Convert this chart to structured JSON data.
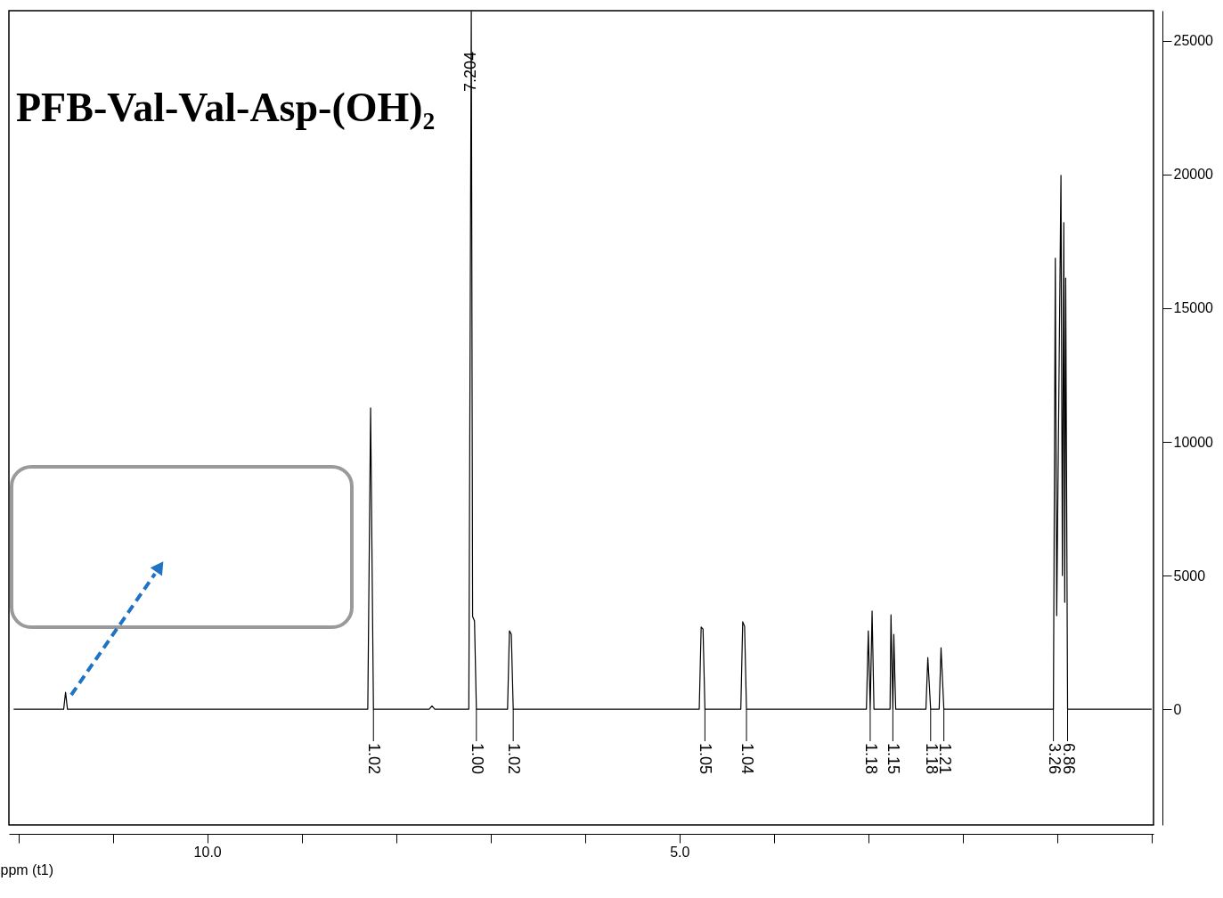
{
  "chart_data": {
    "type": "line",
    "title": "PFB-Val-Val-Asp-(OH)₂",
    "xlabel": "ppm (t1)",
    "x": [
      12.05,
      11.52,
      11.5,
      11.48,
      8.3,
      8.27,
      8.24,
      7.65,
      7.62,
      7.59,
      7.23,
      7.204,
      7.19,
      7.17,
      7.15,
      6.82,
      6.8,
      6.78,
      6.76,
      4.79,
      4.77,
      4.75,
      4.73,
      4.35,
      4.33,
      4.31,
      4.29,
      3.02,
      3.0,
      2.98,
      2.96,
      2.94,
      2.77,
      2.76,
      2.74,
      2.73,
      2.71,
      2.39,
      2.37,
      2.34,
      2.25,
      2.23,
      2.2,
      1.04,
      1.02,
      1.005,
      0.96,
      0.945,
      0.93,
      0.92,
      0.91,
      0.89,
      0.0
    ],
    "series": [
      {
        "color": "#000000",
        "values": [
          0,
          0,
          630,
          0,
          0,
          11270,
          0,
          0,
          120,
          0,
          0,
          26100,
          3470,
          3300,
          0,
          0,
          2930,
          2800,
          0,
          0,
          3070,
          3000,
          0,
          0,
          3270,
          3100,
          0,
          0,
          2930,
          0,
          3670,
          0,
          0,
          3530,
          0,
          2800,
          0,
          0,
          1930,
          0,
          0,
          2300,
          0,
          0,
          16870,
          3500,
          19970,
          5000,
          18200,
          4000,
          16130,
          0,
          0
        ]
      }
    ],
    "xlim": [
      12.1,
      -0.02
    ],
    "xticks": [
      {
        "value": 12,
        "label": null
      },
      {
        "value": 11,
        "label": null
      },
      {
        "value": 10,
        "label": "10.0"
      },
      {
        "value": 9,
        "label": null
      },
      {
        "value": 8,
        "label": null
      },
      {
        "value": 7,
        "label": null
      },
      {
        "value": 6,
        "label": null
      },
      {
        "value": 5,
        "label": "5.0"
      },
      {
        "value": 4,
        "label": null
      },
      {
        "value": 3,
        "label": null
      },
      {
        "value": 2,
        "label": null
      },
      {
        "value": 1,
        "label": null
      },
      {
        "value": 0,
        "label": null
      }
    ],
    "ylim": [
      -4330,
      26130
    ],
    "yticks": [
      0,
      5000,
      10000,
      15000,
      20000,
      25000
    ],
    "grid": false,
    "marker": "none",
    "line_style": "solid",
    "annotations": [
      {
        "text": "7.204",
        "x": 7.204,
        "y": 26100
      },
      {
        "text": "1.02",
        "x": 8.24,
        "y": 0
      },
      {
        "text": "1.00",
        "x": 7.15,
        "y": 0
      },
      {
        "text": "1.02",
        "x": 6.76,
        "y": 0
      },
      {
        "text": "1.05",
        "x": 4.73,
        "y": 0
      },
      {
        "text": "1.04",
        "x": 4.29,
        "y": 0
      },
      {
        "text": "1.18",
        "x": 2.98,
        "y": 0
      },
      {
        "text": "1.15",
        "x": 2.74,
        "y": 0
      },
      {
        "text": "1.18",
        "x": 2.34,
        "y": 0
      },
      {
        "text": "1.21",
        "x": 2.2,
        "y": 0
      },
      {
        "text": "3.26",
        "x": 1.04,
        "y": 0
      },
      {
        "text": "6.86",
        "x": 0.89,
        "y": 0
      }
    ]
  }
}
